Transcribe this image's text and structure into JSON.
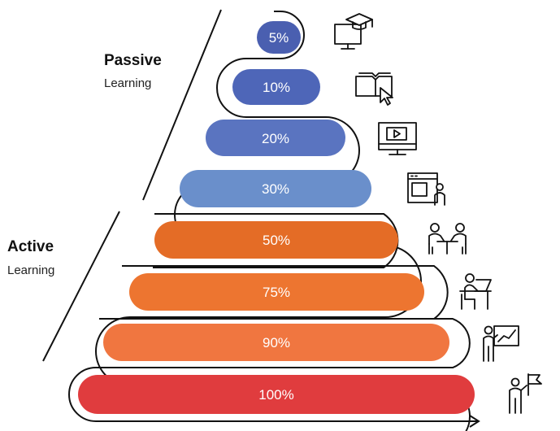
{
  "labels": {
    "passive_title": "Passive",
    "passive_sub": "Learning",
    "active_title": "Active",
    "active_sub": "Learning"
  },
  "levels": [
    {
      "value": "5%",
      "color": "#4a5fb0",
      "icon": "online-course-icon"
    },
    {
      "value": "10%",
      "color": "#4e66b8",
      "icon": "reading-book-icon"
    },
    {
      "value": "20%",
      "color": "#5a74c0",
      "icon": "video-monitor-icon"
    },
    {
      "value": "30%",
      "color": "#6a8fcb",
      "icon": "presentation-screen-icon"
    },
    {
      "value": "50%",
      "color": "#e46c26",
      "icon": "discussion-group-icon"
    },
    {
      "value": "75%",
      "color": "#ed7530",
      "icon": "practice-laptop-icon"
    },
    {
      "value": "90%",
      "color": "#f07640",
      "icon": "teaching-board-icon"
    },
    {
      "value": "100%",
      "color": "#e03c3e",
      "icon": "goal-flag-icon"
    }
  ]
}
